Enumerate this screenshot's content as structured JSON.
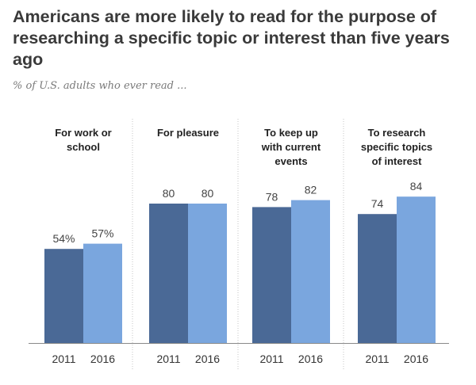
{
  "header": {
    "title": "Americans are more likely to read for the purpose of researching a specific topic or interest than five years ago",
    "subtitle": "% of U.S. adults who ever read ..."
  },
  "chart_data": {
    "type": "bar",
    "title": "Americans are more likely to read for the purpose of researching a specific topic or interest than five years ago",
    "subtitle": "% of U.S. adults who ever read ...",
    "ylim": [
      0,
      100
    ],
    "grid": false,
    "years": [
      "2011",
      "2016"
    ],
    "colors": {
      "2011": "#4a6996",
      "2016": "#7aa6de"
    },
    "groups": [
      {
        "category": [
          "For work or",
          "school"
        ],
        "values": [
          54,
          57
        ],
        "labels": [
          "54%",
          "57%"
        ]
      },
      {
        "category": [
          "For pleasure"
        ],
        "values": [
          80,
          80
        ],
        "labels": [
          "80",
          "80"
        ]
      },
      {
        "category": [
          "To keep up",
          "with current",
          "events"
        ],
        "values": [
          78,
          82
        ],
        "labels": [
          "78",
          "82"
        ]
      },
      {
        "category": [
          "To research",
          "specific topics",
          "of interest"
        ],
        "values": [
          74,
          84
        ],
        "labels": [
          "74",
          "84"
        ]
      }
    ]
  }
}
